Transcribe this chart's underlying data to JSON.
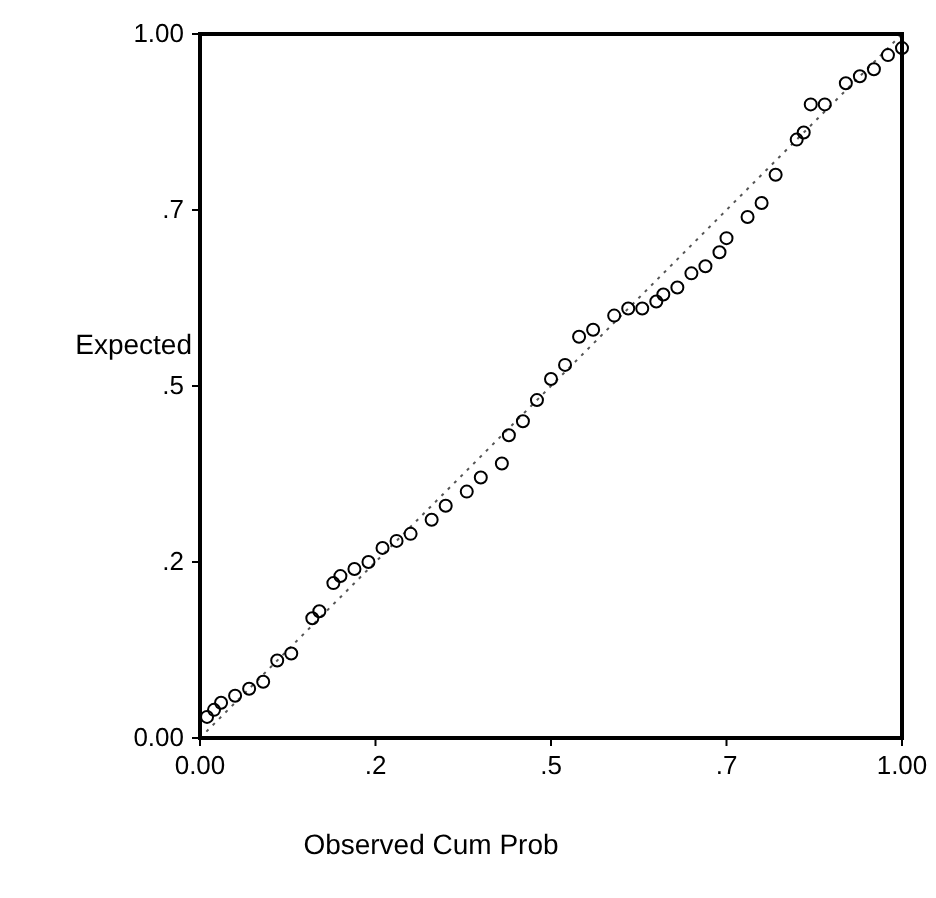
{
  "chart_data": {
    "type": "scatter",
    "xlabel": "Observed Cum Prob",
    "ylabel": "Expected",
    "xlim": [
      0,
      1
    ],
    "ylim": [
      0,
      1
    ],
    "xticks": [
      {
        "value": 0,
        "label": "0.00"
      },
      {
        "value": 0.25,
        "label": ".2"
      },
      {
        "value": 0.5,
        "label": ".5"
      },
      {
        "value": 0.75,
        "label": ".7"
      },
      {
        "value": 1,
        "label": "1.00"
      }
    ],
    "yticks": [
      {
        "value": 0,
        "label": "0.00"
      },
      {
        "value": 0.25,
        "label": ".2"
      },
      {
        "value": 0.5,
        "label": ".5"
      },
      {
        "value": 0.75,
        "label": ".7"
      },
      {
        "value": 1,
        "label": "1.00"
      }
    ],
    "grid": false,
    "marker": "circle",
    "series": [
      {
        "type": "line",
        "color": "#555555",
        "line_style": "dotted",
        "marker": "none",
        "x": [
          0,
          1
        ],
        "values": [
          0,
          1
        ]
      },
      {
        "color": "#000000",
        "x": [
          0.01,
          0.02,
          0.03,
          0.05,
          0.07,
          0.09,
          0.11,
          0.13,
          0.16,
          0.17,
          0.19,
          0.2,
          0.22,
          0.24,
          0.26,
          0.28,
          0.3,
          0.33,
          0.35,
          0.38,
          0.4,
          0.43,
          0.44,
          0.46,
          0.48,
          0.5,
          0.52,
          0.54,
          0.56,
          0.59,
          0.61,
          0.63,
          0.65,
          0.66,
          0.68,
          0.7,
          0.72,
          0.74,
          0.75,
          0.78,
          0.8,
          0.82,
          0.85,
          0.86,
          0.87,
          0.89,
          0.92,
          0.94,
          0.96,
          0.98,
          1.0
        ],
        "values": [
          0.03,
          0.04,
          0.05,
          0.06,
          0.07,
          0.08,
          0.11,
          0.12,
          0.17,
          0.18,
          0.22,
          0.23,
          0.24,
          0.25,
          0.27,
          0.28,
          0.29,
          0.31,
          0.33,
          0.35,
          0.37,
          0.39,
          0.43,
          0.45,
          0.48,
          0.51,
          0.53,
          0.57,
          0.58,
          0.6,
          0.61,
          0.61,
          0.62,
          0.63,
          0.64,
          0.66,
          0.67,
          0.69,
          0.71,
          0.74,
          0.76,
          0.8,
          0.85,
          0.86,
          0.9,
          0.9,
          0.93,
          0.94,
          0.95,
          0.97,
          0.98
        ]
      }
    ]
  }
}
